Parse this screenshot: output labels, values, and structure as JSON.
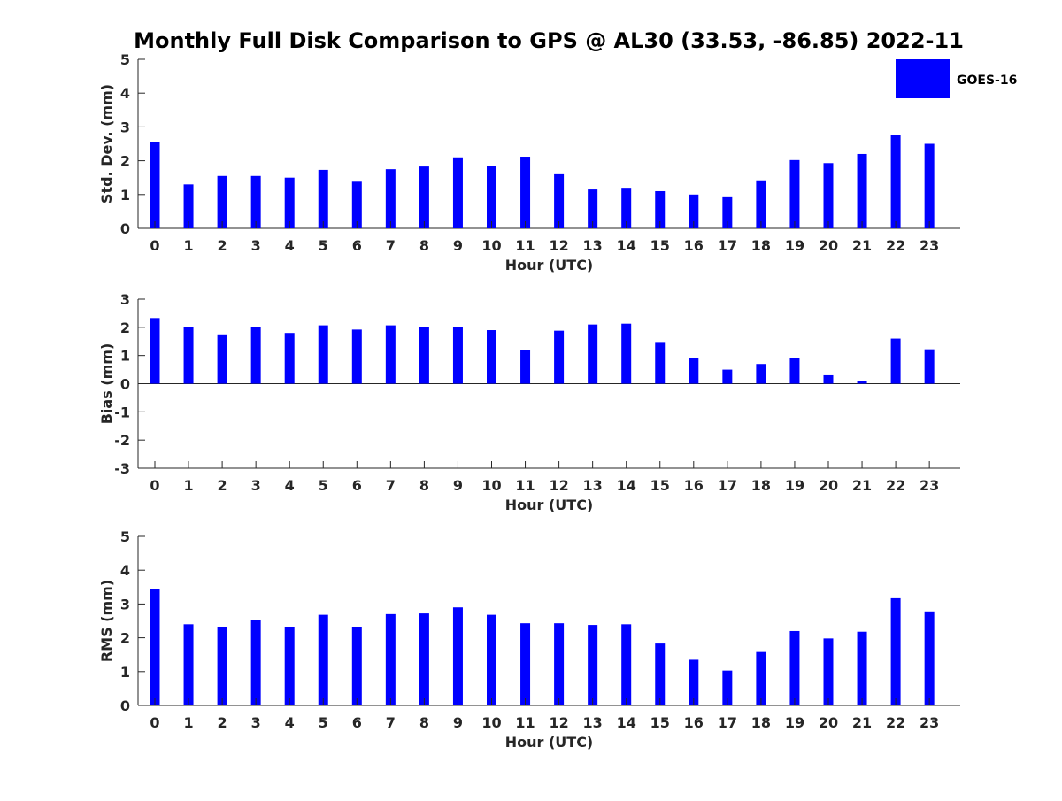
{
  "title": "Monthly Full Disk Comparison to GPS @ AL30 (33.53, -86.85) 2022-11",
  "legend": {
    "label": "GOES-16",
    "color": "#0000ff",
    "placement": "top-right"
  },
  "bar_color": "#0000ff",
  "chart_data": [
    {
      "type": "bar",
      "categories": [
        "0",
        "1",
        "2",
        "3",
        "4",
        "5",
        "6",
        "7",
        "8",
        "9",
        "10",
        "11",
        "12",
        "13",
        "14",
        "15",
        "16",
        "17",
        "18",
        "19",
        "20",
        "21",
        "22",
        "23"
      ],
      "series": [
        {
          "name": "GOES-16",
          "values": [
            2.55,
            1.3,
            1.55,
            1.55,
            1.5,
            1.73,
            1.38,
            1.75,
            1.83,
            2.1,
            1.85,
            2.12,
            1.6,
            1.15,
            1.2,
            1.1,
            1.0,
            0.92,
            1.42,
            2.02,
            1.93,
            2.2,
            2.75,
            2.5
          ]
        }
      ],
      "xlabel": "Hour (UTC)",
      "ylabel": "Std. Dev. (mm)",
      "ylim": [
        0,
        5
      ],
      "yticks": [
        "0",
        "1",
        "2",
        "3",
        "4",
        "5"
      ],
      "grid": false
    },
    {
      "type": "bar",
      "categories": [
        "0",
        "1",
        "2",
        "3",
        "4",
        "5",
        "6",
        "7",
        "8",
        "9",
        "10",
        "11",
        "12",
        "13",
        "14",
        "15",
        "16",
        "17",
        "18",
        "19",
        "20",
        "21",
        "22",
        "23"
      ],
      "series": [
        {
          "name": "GOES-16",
          "values": [
            2.33,
            2.0,
            1.75,
            2.0,
            1.8,
            2.07,
            1.92,
            2.07,
            2.0,
            2.0,
            1.9,
            1.2,
            1.88,
            2.1,
            2.13,
            1.48,
            0.92,
            0.5,
            0.7,
            0.92,
            0.3,
            0.1,
            1.6,
            1.22
          ]
        }
      ],
      "xlabel": "Hour (UTC)",
      "ylabel": "Bias (mm)",
      "ylim": [
        -3,
        3
      ],
      "yticks": [
        "-3",
        "-2",
        "-1",
        "0",
        "1",
        "2",
        "3"
      ],
      "grid": false
    },
    {
      "type": "bar",
      "categories": [
        "0",
        "1",
        "2",
        "3",
        "4",
        "5",
        "6",
        "7",
        "8",
        "9",
        "10",
        "11",
        "12",
        "13",
        "14",
        "15",
        "16",
        "17",
        "18",
        "19",
        "20",
        "21",
        "22",
        "23"
      ],
      "series": [
        {
          "name": "GOES-16",
          "values": [
            3.45,
            2.4,
            2.33,
            2.52,
            2.33,
            2.68,
            2.33,
            2.7,
            2.72,
            2.9,
            2.68,
            2.43,
            2.43,
            2.38,
            2.4,
            1.83,
            1.35,
            1.03,
            1.58,
            2.2,
            1.98,
            2.18,
            3.17,
            2.78
          ]
        }
      ],
      "xlabel": "Hour (UTC)",
      "ylabel": "RMS (mm)",
      "ylim": [
        0,
        5
      ],
      "yticks": [
        "0",
        "1",
        "2",
        "3",
        "4",
        "5"
      ],
      "grid": false
    }
  ]
}
